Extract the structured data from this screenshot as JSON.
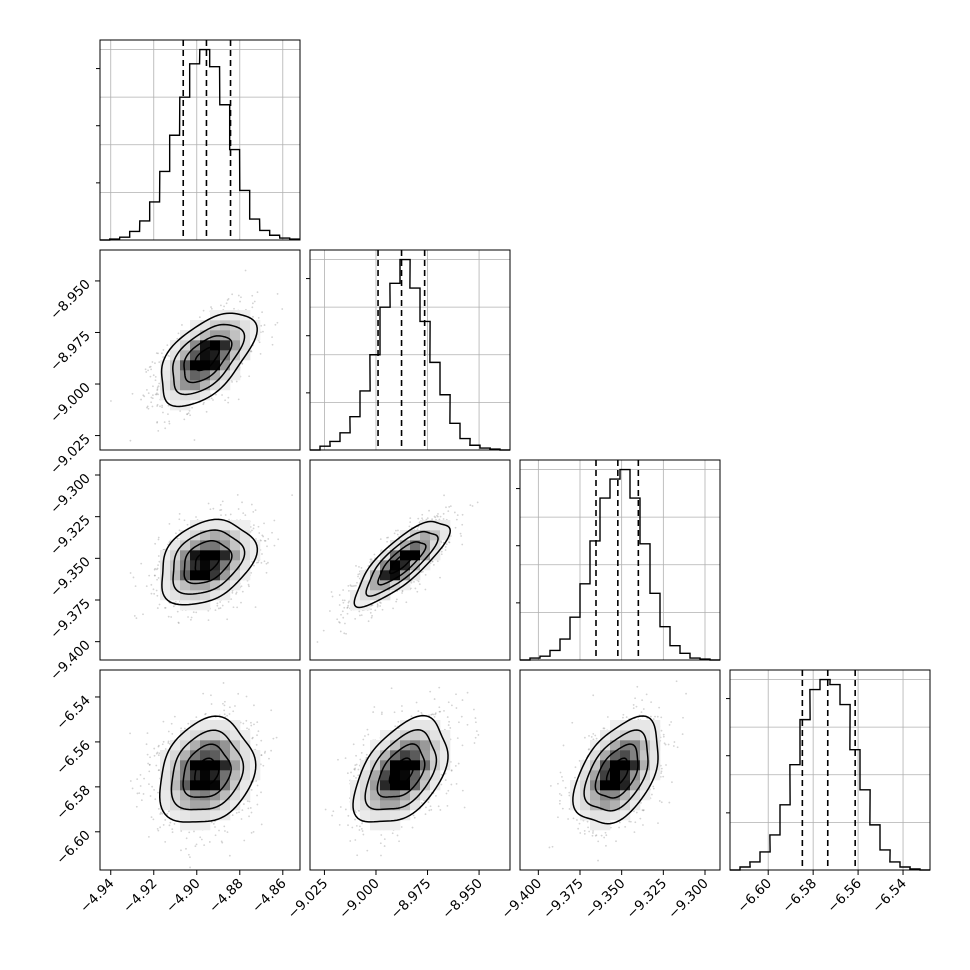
{
  "chart_data": {
    "type": "corner",
    "title": "",
    "parameters": [
      {
        "label": "",
        "range": [
          -4.945,
          -4.852
        ],
        "ticks": [
          -4.94,
          -4.92,
          -4.9,
          -4.88,
          -4.86
        ],
        "tick_labels": [
          "−4.94",
          "−4.92",
          "−4.90",
          "−4.88",
          "−4.86"
        ],
        "quantiles": [
          -4.9063,
          -4.8955,
          -4.8843
        ],
        "hist_bin_centers": [
          -4.9428,
          -4.9382,
          -4.9335,
          -4.9289,
          -4.9242,
          -4.9196,
          -4.9149,
          -4.9103,
          -4.9056,
          -4.901,
          -4.8963,
          -4.8917,
          -4.887,
          -4.8824,
          -4.8777,
          -4.8731,
          -4.8684,
          -4.8638,
          -4.8591,
          -4.8545
        ],
        "hist_counts": [
          0,
          1,
          3,
          9,
          20,
          40,
          72,
          110,
          150,
          185,
          200,
          182,
          142,
          95,
          52,
          22,
          10,
          5,
          2,
          1
        ]
      },
      {
        "label": "",
        "range": [
          -9.032,
          -8.935
        ],
        "ticks": [
          -9.025,
          -9.0,
          -8.975,
          -8.95
        ],
        "tick_labels": [
          "−9.025",
          "−9.000",
          "−8.975",
          "−8.950"
        ],
        "quantiles": [
          -8.999,
          -8.9876,
          -8.9764
        ],
        "hist_bin_centers": [
          -9.0296,
          -9.0247,
          -9.0199,
          -9.015,
          -9.0102,
          -9.0053,
          -9.0005,
          -8.9956,
          -8.9908,
          -8.9859,
          -8.9811,
          -8.9762,
          -8.9714,
          -8.9665,
          -8.9617,
          -8.9568,
          -8.952,
          -8.9471,
          -8.9423,
          -8.9374
        ],
        "hist_counts": [
          0,
          4,
          9,
          18,
          35,
          62,
          100,
          150,
          175,
          200,
          170,
          135,
          92,
          58,
          28,
          12,
          5,
          2,
          1,
          0
        ]
      },
      {
        "label": "",
        "range": [
          -9.411,
          -9.291
        ],
        "ticks": [
          -9.4,
          -9.375,
          -9.35,
          -9.325,
          -9.3
        ],
        "tick_labels": [
          "−9.400",
          "−9.375",
          "−9.350",
          "−9.325",
          "−9.300"
        ],
        "quantiles": [
          -9.3654,
          -9.3523,
          -9.34
        ],
        "hist_bin_centers": [
          -9.408,
          -9.402,
          -9.396,
          -9.39,
          -9.384,
          -9.378,
          -9.372,
          -9.366,
          -9.36,
          -9.354,
          -9.348,
          -9.342,
          -9.336,
          -9.33,
          -9.324,
          -9.318,
          -9.312,
          -9.306,
          -9.3,
          -9.294
        ],
        "hist_counts": [
          0,
          2,
          4,
          10,
          22,
          45,
          80,
          125,
          170,
          190,
          200,
          170,
          122,
          70,
          35,
          15,
          7,
          2,
          1,
          0
        ]
      },
      {
        "label": "",
        "range": [
          -6.617,
          -6.528
        ],
        "ticks": [
          -6.6,
          -6.58,
          -6.56,
          -6.54
        ],
        "tick_labels": [
          "−6.60",
          "−6.58",
          "−6.56",
          "−6.54"
        ],
        "quantiles": [
          -6.5848,
          -6.5735,
          -6.5613
        ],
        "hist_bin_centers": [
          -6.6148,
          -6.6103,
          -6.6059,
          -6.6014,
          -6.597,
          -6.5925,
          -6.5881,
          -6.5836,
          -6.5792,
          -6.5747,
          -6.5703,
          -6.5658,
          -6.5614,
          -6.5569,
          -6.5525,
          -6.548,
          -6.5436,
          -6.5391,
          -6.5347,
          -6.5302
        ],
        "hist_counts": [
          0,
          3,
          8,
          18,
          35,
          65,
          105,
          150,
          180,
          190,
          185,
          165,
          120,
          80,
          45,
          20,
          8,
          3,
          1,
          0
        ]
      }
    ],
    "correlations": {
      "1_0": 0.55,
      "2_0": 0.3,
      "2_1": 0.8,
      "3_0": 0.2,
      "3_1": 0.45,
      "3_2": 0.45
    },
    "sigma_levels": [
      0.5,
      1.0,
      1.5,
      2.0
    ],
    "grid": true,
    "colors": {
      "line": "#000000",
      "grid": "#b0b0b0",
      "density_max": "#000000",
      "points": "#808080"
    }
  }
}
